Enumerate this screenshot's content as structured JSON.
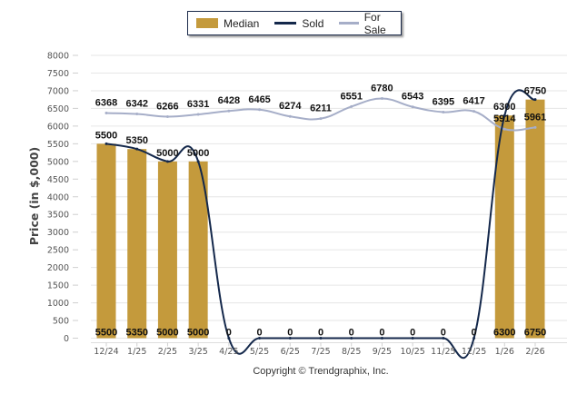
{
  "legend": {
    "median_label": "Median",
    "sold_label": "Sold",
    "for_sale_label": "For Sale"
  },
  "colors": {
    "median": "#c49a3c",
    "sold": "#14284b",
    "for_sale": "#a6aec8",
    "grid": "#e6e6e6"
  },
  "copyright": "Copyright © Trendgraphix, Inc.",
  "chart_data": {
    "type": "bar",
    "title": "",
    "xlabel": "",
    "ylabel": "Price (in $,000)",
    "ylim": [
      0,
      8000
    ],
    "y_ticks": [
      0,
      500,
      1000,
      1500,
      2000,
      2500,
      3000,
      3500,
      4000,
      4500,
      5000,
      5500,
      6000,
      6500,
      7000,
      7500,
      8000
    ],
    "grid": true,
    "legend_position": "top-center",
    "categories": [
      "12/24",
      "1/25",
      "2/25",
      "3/25",
      "4/25",
      "5/25",
      "6/25",
      "7/25",
      "8/25",
      "9/25",
      "10/25",
      "11/25",
      "12/25",
      "1/26",
      "2/26"
    ],
    "series": [
      {
        "name": "Median",
        "type": "bar",
        "values": [
          5500,
          5350,
          5000,
          5000,
          0,
          0,
          0,
          0,
          0,
          0,
          0,
          0,
          0,
          6300,
          6750
        ]
      },
      {
        "name": "Sold",
        "type": "line",
        "values": [
          5500,
          5350,
          5000,
          5000,
          0,
          0,
          0,
          0,
          0,
          0,
          0,
          0,
          0,
          6300,
          6750
        ]
      },
      {
        "name": "For Sale",
        "type": "line",
        "values": [
          6368,
          6342,
          6266,
          6331,
          6428,
          6465,
          6274,
          6211,
          6551,
          6780,
          6543,
          6395,
          6417,
          5914,
          5961
        ]
      }
    ]
  }
}
